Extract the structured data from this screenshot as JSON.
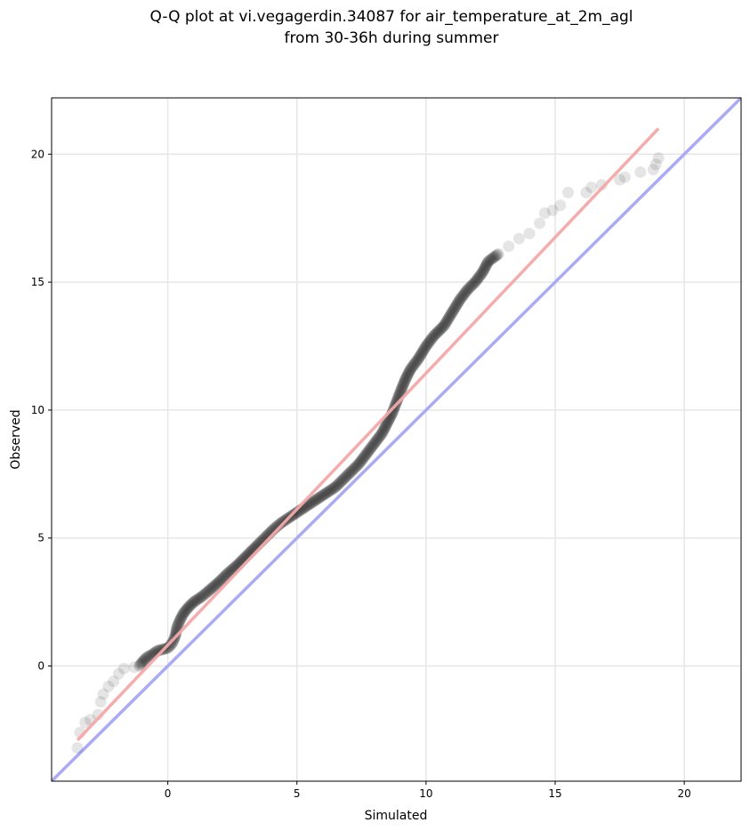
{
  "chart_data": {
    "type": "scatter",
    "title_lines": [
      "Q-Q plot at vi.vegagerdin.34087 for air_temperature_at_2m_agl",
      "from 30-36h during summer"
    ],
    "xlabel": "Simulated",
    "ylabel": "Observed",
    "xlim": [
      -4.5,
      22.2
    ],
    "ylim": [
      -4.5,
      22.2
    ],
    "xticks": [
      0,
      5,
      10,
      15,
      20
    ],
    "yticks": [
      0,
      5,
      10,
      15,
      20
    ],
    "grid": true,
    "reference_line": {
      "name": "",
      "color": "#aaaaf5",
      "from": [
        -4.5,
        -4.5
      ],
      "to": [
        22.2,
        22.2
      ]
    },
    "fit_line": {
      "name": "",
      "color": "#f5a8a8",
      "from": [
        -3.5,
        -2.9
      ],
      "to": [
        19.0,
        21.0
      ]
    },
    "point_color": "#000000",
    "quantiles": [
      [
        -3.5,
        -3.2
      ],
      [
        -3.4,
        -2.6
      ],
      [
        -3.2,
        -2.2
      ],
      [
        -3.0,
        -2.1
      ],
      [
        -2.7,
        -1.9
      ],
      [
        -2.6,
        -1.4
      ],
      [
        -2.5,
        -1.1
      ],
      [
        -2.3,
        -0.8
      ],
      [
        -2.1,
        -0.6
      ],
      [
        -1.9,
        -0.3
      ],
      [
        -1.7,
        -0.1
      ],
      [
        -1.3,
        -0.05
      ],
      [
        -1.1,
        0.0
      ],
      [
        -0.95,
        0.2
      ],
      [
        -0.8,
        0.35
      ],
      [
        -0.6,
        0.45
      ],
      [
        -0.4,
        0.6
      ],
      [
        -0.2,
        0.65
      ],
      [
        0.0,
        0.7
      ],
      [
        0.1,
        0.8
      ],
      [
        0.2,
        0.95
      ],
      [
        0.3,
        1.2
      ],
      [
        0.35,
        1.5
      ],
      [
        0.45,
        1.75
      ],
      [
        0.6,
        2.05
      ],
      [
        0.8,
        2.3
      ],
      [
        1.0,
        2.5
      ],
      [
        1.3,
        2.7
      ],
      [
        1.6,
        2.95
      ],
      [
        2.0,
        3.3
      ],
      [
        2.3,
        3.6
      ],
      [
        2.7,
        3.95
      ],
      [
        3.1,
        4.35
      ],
      [
        3.5,
        4.75
      ],
      [
        3.8,
        5.05
      ],
      [
        4.1,
        5.35
      ],
      [
        4.4,
        5.6
      ],
      [
        4.7,
        5.8
      ],
      [
        5.0,
        6.0
      ],
      [
        5.3,
        6.2
      ],
      [
        5.6,
        6.4
      ],
      [
        5.9,
        6.6
      ],
      [
        6.2,
        6.8
      ],
      [
        6.5,
        7.0
      ],
      [
        6.8,
        7.3
      ],
      [
        7.1,
        7.6
      ],
      [
        7.4,
        7.9
      ],
      [
        7.7,
        8.3
      ],
      [
        8.0,
        8.7
      ],
      [
        8.3,
        9.1
      ],
      [
        8.5,
        9.5
      ],
      [
        8.7,
        9.9
      ],
      [
        8.85,
        10.3
      ],
      [
        9.0,
        10.7
      ],
      [
        9.2,
        11.2
      ],
      [
        9.4,
        11.6
      ],
      [
        9.7,
        12.0
      ],
      [
        10.0,
        12.5
      ],
      [
        10.3,
        12.9
      ],
      [
        10.7,
        13.3
      ],
      [
        11.0,
        13.8
      ],
      [
        11.3,
        14.3
      ],
      [
        11.6,
        14.7
      ],
      [
        11.9,
        15.0
      ],
      [
        12.2,
        15.4
      ],
      [
        12.4,
        15.8
      ],
      [
        12.8,
        16.1
      ],
      [
        13.2,
        16.4
      ],
      [
        13.6,
        16.7
      ],
      [
        14.0,
        16.9
      ],
      [
        14.4,
        17.3
      ],
      [
        14.6,
        17.7
      ],
      [
        14.9,
        17.8
      ],
      [
        15.2,
        18.0
      ],
      [
        15.5,
        18.5
      ],
      [
        16.2,
        18.5
      ],
      [
        16.4,
        18.7
      ],
      [
        16.8,
        18.8
      ],
      [
        17.5,
        19.0
      ],
      [
        17.7,
        19.1
      ],
      [
        18.3,
        19.3
      ],
      [
        18.8,
        19.4
      ],
      [
        18.9,
        19.6
      ],
      [
        19.0,
        19.85
      ]
    ]
  }
}
